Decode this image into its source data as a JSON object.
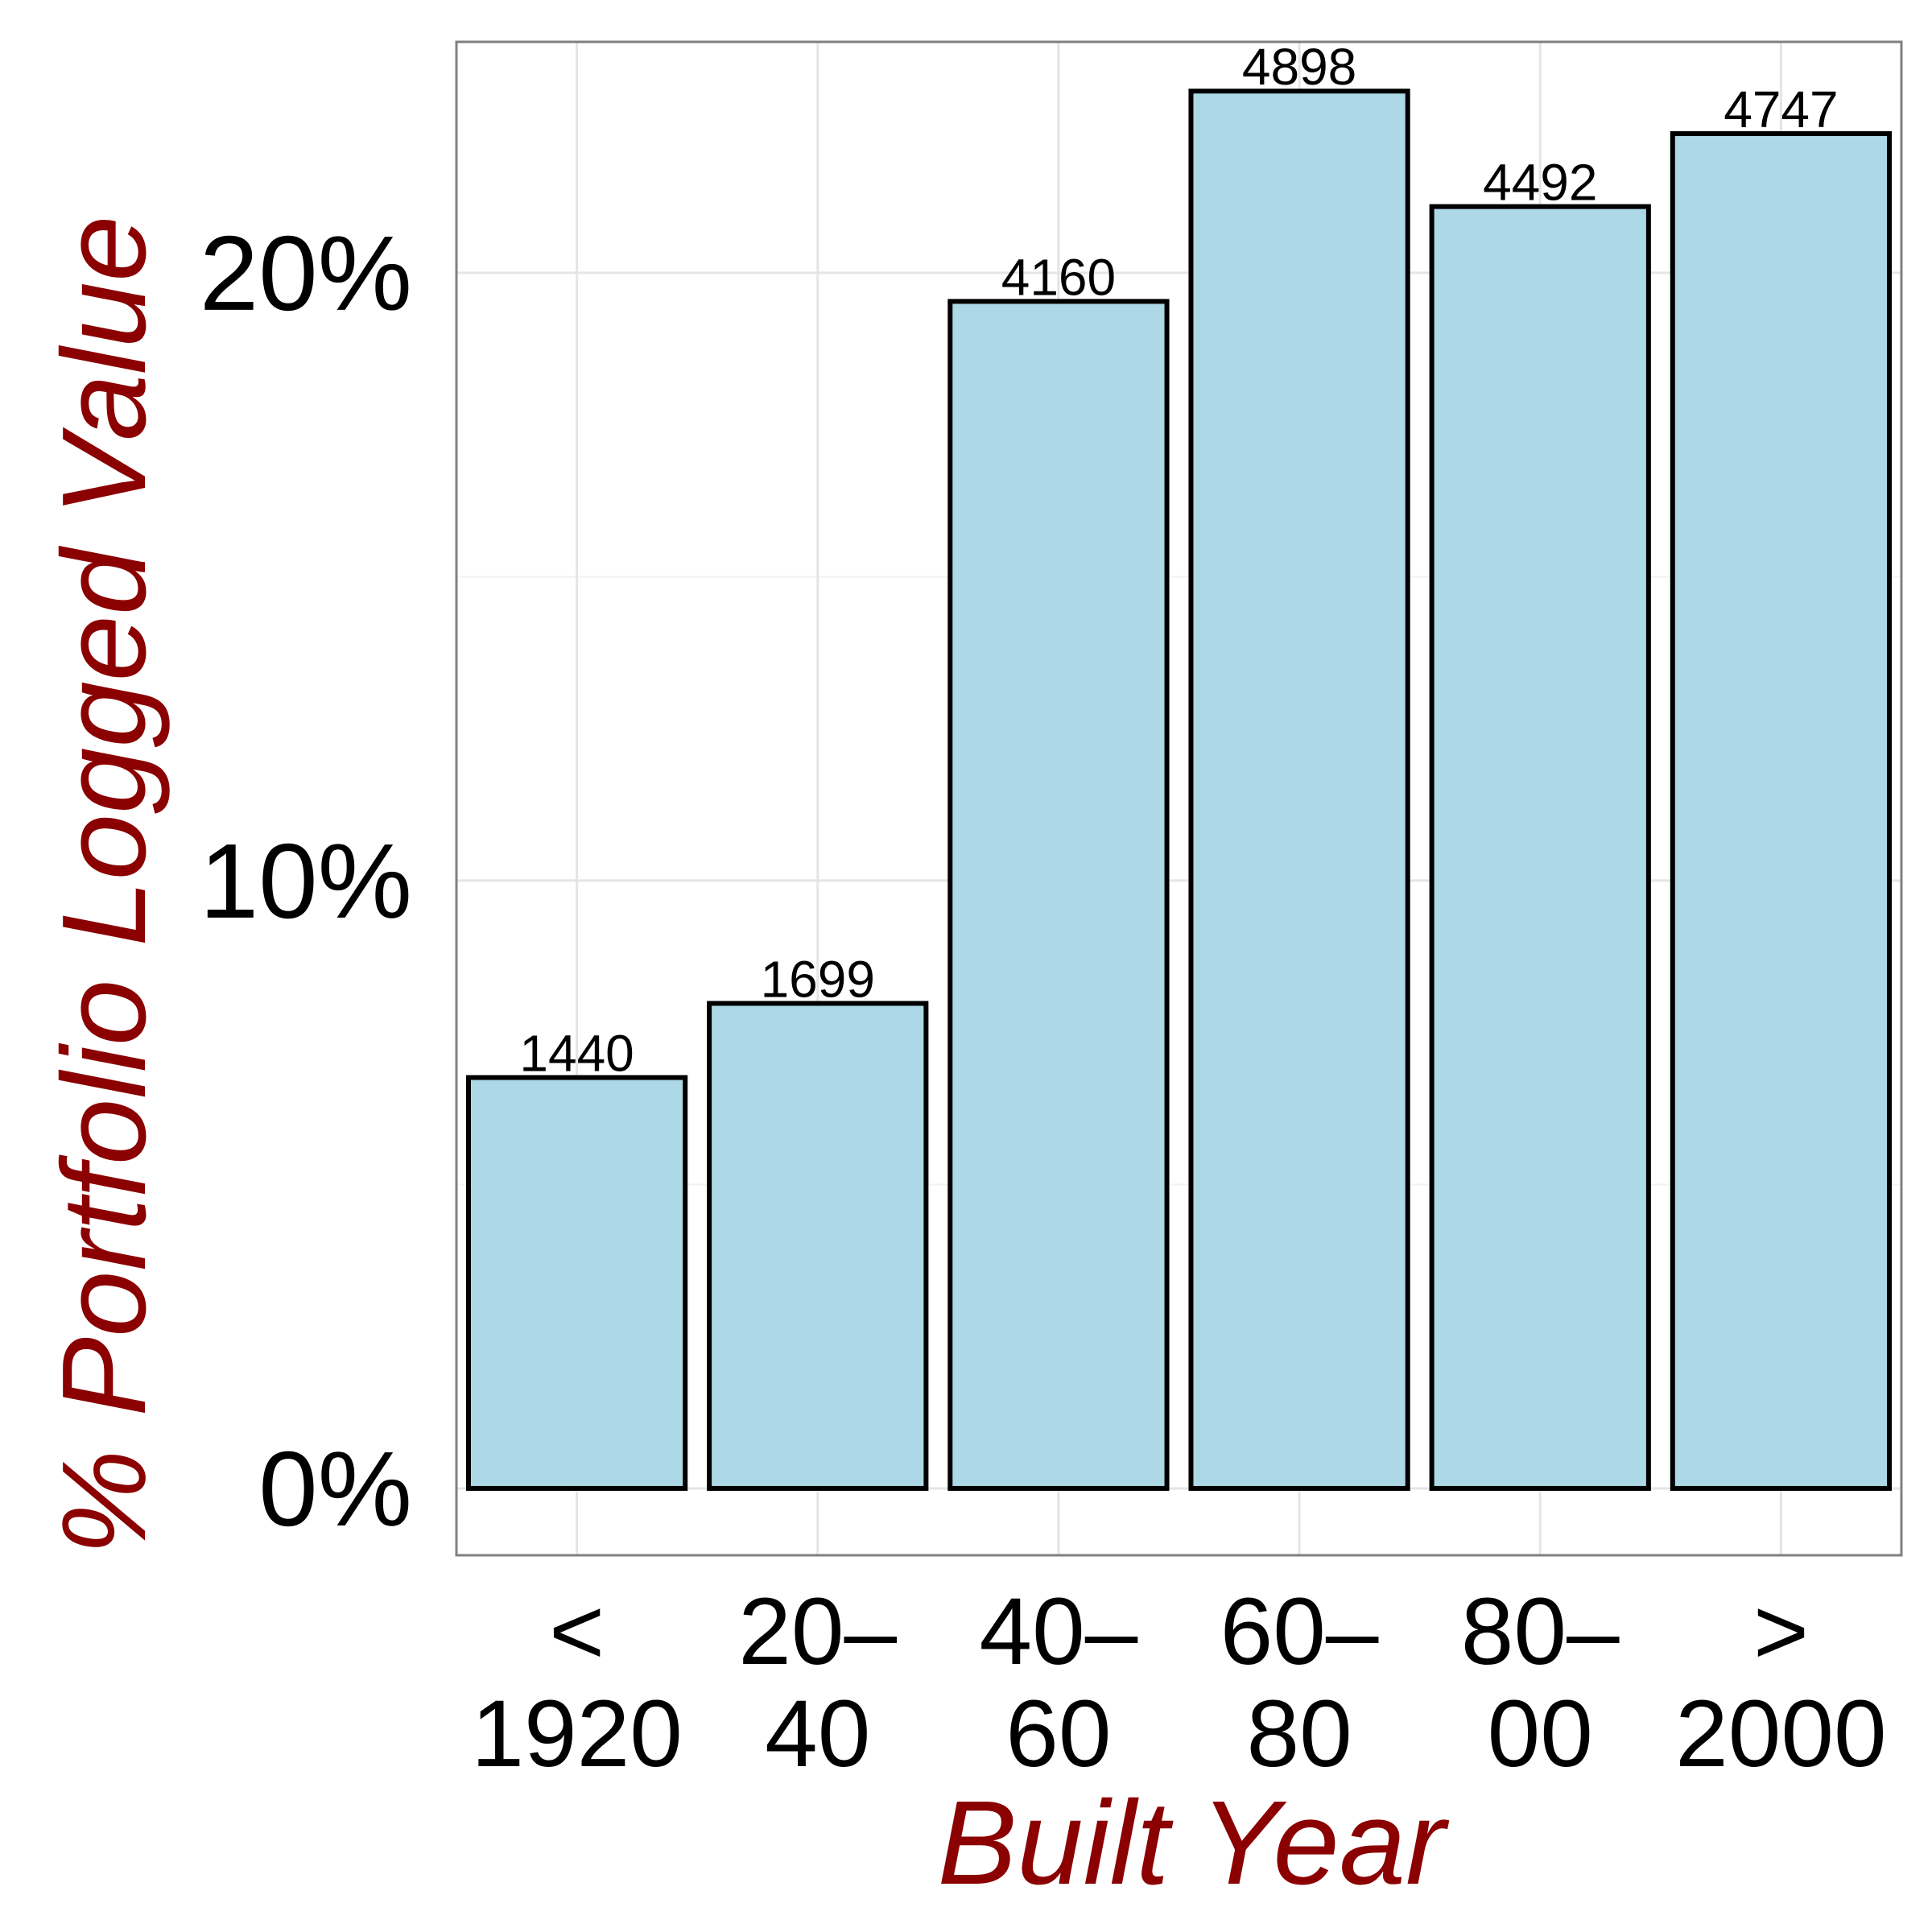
{
  "chart_data": {
    "type": "bar",
    "categories": [
      [
        "<",
        "1920"
      ],
      [
        "20–",
        "40"
      ],
      [
        "40–",
        "60"
      ],
      [
        "60–",
        "80"
      ],
      [
        "80–",
        "00"
      ],
      [
        ">",
        "2000"
      ]
    ],
    "values": [
      6.76,
      7.98,
      19.53,
      22.99,
      21.09,
      22.29
    ],
    "data_labels": [
      "1440",
      "1699",
      "4160",
      "4898",
      "4492",
      "4747"
    ],
    "xlabel": "Built Year",
    "ylabel": "% Portfolio Logged Value",
    "ylim": [
      -1.1,
      23.8
    ],
    "yticks": [
      0,
      10,
      20
    ],
    "ytick_labels": [
      "0%",
      "10%",
      "20%"
    ],
    "grid": true,
    "colors": {
      "bar_fill": "#add8e6",
      "bar_stroke": "#000000",
      "axis_title": "#8b0000",
      "panel_border": "#808080",
      "grid_major": "#e5e5e5",
      "grid_minor": "#f2f2f2"
    }
  }
}
